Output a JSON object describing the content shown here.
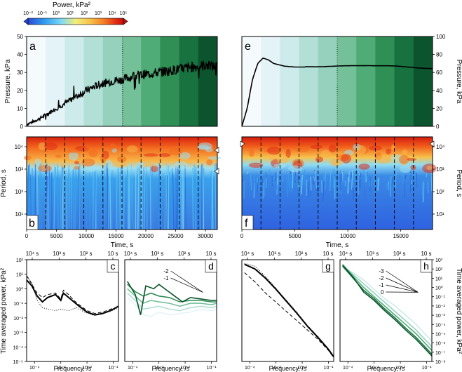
{
  "colorbar": {
    "title": "Power, kPa²",
    "ticks": [
      "10⁻²",
      "10⁻¹",
      "10⁰",
      "10¹",
      "10²",
      "10³",
      "10⁴",
      "10⁵"
    ],
    "colors": [
      "#2a48d6",
      "#2fa0f0",
      "#7fd8f5",
      "#f4ee7a",
      "#f8c24a",
      "#f37b22",
      "#e22d14",
      "#c70f0a"
    ]
  },
  "chart_data": [
    {
      "panel": "a",
      "type": "line",
      "ylabel": "Pressure, kPa",
      "ylim": [
        0,
        50
      ],
      "yticks": [
        "0",
        "10",
        "20",
        "30",
        "40",
        "50"
      ],
      "xlim": [
        0,
        32000
      ],
      "band_colors": [
        "#f5fafd",
        "#e4f3f8",
        "#cdebea",
        "#b2dfd6",
        "#95d1bd",
        "#74c099",
        "#4fac76",
        "#2f8f55",
        "#177240",
        "#0b542d"
      ],
      "series": [
        {
          "name": "Pressure",
          "x": [
            0,
            2000,
            4000,
            6000,
            8000,
            10000,
            12000,
            14000,
            16000,
            18000,
            20000,
            22000,
            24000,
            26000,
            28000,
            30000,
            32000
          ],
          "y": [
            1,
            4,
            8,
            12,
            16,
            20,
            23,
            25,
            26,
            28,
            29,
            30,
            31,
            32,
            33,
            34,
            33
          ]
        }
      ]
    },
    {
      "panel": "e",
      "type": "line",
      "ylabel": "Pressure, kPa",
      "ylim": [
        0,
        100
      ],
      "yticks": [
        "0",
        "20",
        "40",
        "60",
        "80",
        "100"
      ],
      "xlim": [
        0,
        18000
      ],
      "band_colors": [
        "#f5fafd",
        "#e4f3f8",
        "#cdebea",
        "#b2dfd6",
        "#95d1bd",
        "#74c099",
        "#4fac76",
        "#2f8f55",
        "#177240",
        "#0b542d"
      ],
      "series": [
        {
          "name": "Pressure",
          "x": [
            0,
            500,
            1000,
            1500,
            2000,
            2500,
            3000,
            4000,
            5000,
            6000,
            8000,
            10000,
            12000,
            14000,
            16000,
            18000
          ],
          "y": [
            0,
            20,
            52,
            70,
            76,
            74,
            70,
            67,
            66,
            66,
            67,
            67,
            68,
            67,
            66,
            64
          ]
        }
      ]
    },
    {
      "panel": "b",
      "type": "heatmap",
      "ylabel": "Period, s",
      "yticks": [
        "10¹",
        "10²",
        "10³",
        "10⁴"
      ],
      "xlabel": "Time, s",
      "xticks": [
        "0",
        "5000",
        "10000",
        "15000",
        "20000",
        "25000",
        "30000"
      ],
      "xlim": [
        0,
        32000
      ]
    },
    {
      "panel": "f",
      "type": "heatmap",
      "ylabel": "Period, s",
      "yticks": [
        "10¹",
        "10²",
        "10³",
        "10⁴"
      ],
      "xlabel": "Time, s",
      "xticks": [
        "0",
        "5000",
        "10000",
        "15000"
      ],
      "xlim": [
        0,
        18000
      ]
    },
    {
      "panel": "c",
      "type": "line",
      "ylabel": "Time averaged power, kPa²",
      "yticks": [
        "10⁻⁵",
        "10⁻⁴",
        "10⁻³",
        "10⁻²",
        "10⁻¹",
        "10⁰",
        "10¹",
        "10²"
      ],
      "ylim_log": [
        -5,
        2
      ],
      "xlim_log": [
        -4.3,
        -0.8
      ],
      "series": [
        {
          "name": "solid",
          "x": [
            -4.3,
            -4.1,
            -3.9,
            -3.7,
            -3.5,
            -3.2,
            -3.0,
            -2.9,
            -2.7,
            -2.5,
            -2.3,
            -2.0,
            -1.7,
            -1.4,
            -1.1,
            -0.9,
            -0.8
          ],
          "y": [
            0.6,
            0.2,
            -0.5,
            -0.9,
            -0.6,
            -0.4,
            -0.8,
            -0.3,
            -0.6,
            -0.9,
            -1.2,
            -1.6,
            -1.8,
            -1.7,
            -1.5,
            -1.3,
            -1.2
          ]
        },
        {
          "name": "dashed",
          "x": [
            -4.3,
            -4.1,
            -3.9,
            -3.7,
            -3.5,
            -3.2,
            -3.0,
            -2.9,
            -2.7,
            -2.5,
            -2.3,
            -2.0,
            -1.7,
            -1.4,
            -1.1,
            -0.9,
            -0.8
          ],
          "y": [
            0.9,
            0.3,
            -0.3,
            -0.6,
            -0.4,
            -0.3,
            -0.7,
            -0.1,
            -0.4,
            -0.8,
            -1.1,
            -1.5,
            -1.7,
            -1.6,
            -1.4,
            -1.3,
            -1.2
          ]
        },
        {
          "name": "dotted",
          "x": [
            -4.3,
            -4.1,
            -3.9,
            -3.7,
            -3.5,
            -3.2,
            -3.0,
            -2.7,
            -2.4,
            -2.1,
            -1.8,
            -1.5,
            -1.2,
            -0.9,
            -0.8
          ],
          "y": [
            0.9,
            0.4,
            -0.8,
            -1.3,
            -1.4,
            -1.5,
            -1.4,
            -1.5,
            -1.3,
            -1.6,
            -1.8,
            -1.7,
            -1.6,
            -1.4,
            -1.3
          ]
        }
      ]
    },
    {
      "panel": "d",
      "type": "line",
      "xlim_log": [
        -4.3,
        -0.8
      ],
      "ylim_log": [
        -5,
        2
      ],
      "slope_labels": [
        "-2",
        "-1"
      ],
      "series": [
        {
          "name": "w1",
          "color": "#e4f3f8",
          "x": [
            -4.2,
            -3.9,
            -3.6,
            -3.3,
            -3.0,
            -2.6,
            -2.2,
            -1.8,
            -1.4,
            -1.0,
            -0.8
          ],
          "y": [
            -0.6,
            -1.1,
            -1.8,
            -1.9,
            -1.6,
            -1.8,
            -1.7,
            -1.6,
            -1.4,
            -1.5,
            -1.4
          ]
        },
        {
          "name": "w2",
          "color": "#b2dfd6",
          "x": [
            -4.2,
            -3.9,
            -3.6,
            -3.3,
            -3.0,
            -2.6,
            -2.2,
            -1.8,
            -1.4,
            -1.0,
            -0.8
          ],
          "y": [
            -0.3,
            -0.8,
            -1.4,
            -1.3,
            -1.2,
            -1.4,
            -1.5,
            -1.3,
            -1.2,
            -1.3,
            -1.2
          ]
        },
        {
          "name": "w3",
          "color": "#74c099",
          "x": [
            -4.2,
            -3.9,
            -3.6,
            -3.3,
            -3.0,
            -2.6,
            -2.2,
            -1.8,
            -1.4,
            -1.0,
            -0.8
          ],
          "y": [
            0.0,
            -0.5,
            -1.0,
            -0.8,
            -0.9,
            -1.0,
            -1.2,
            -1.0,
            -1.0,
            -1.1,
            -1.0
          ]
        },
        {
          "name": "w4",
          "color": "#2f8f55",
          "x": [
            -4.2,
            -3.9,
            -3.6,
            -3.3,
            -3.0,
            -2.6,
            -2.2,
            -1.8,
            -1.4,
            -1.0,
            -0.8
          ],
          "y": [
            0.3,
            -0.2,
            -0.5,
            -0.3,
            -0.5,
            -0.6,
            -0.9,
            -0.8,
            -0.8,
            -0.9,
            -0.9
          ]
        },
        {
          "name": "w5",
          "color": "#0b542d",
          "x": [
            -4.2,
            -3.9,
            -3.7,
            -3.5,
            -3.2,
            -3.0,
            -2.7,
            -2.4,
            -2.1,
            -1.8,
            -1.4,
            -1.0,
            -0.8
          ],
          "y": [
            0.5,
            -0.4,
            -1.8,
            0.2,
            0.0,
            0.3,
            -0.1,
            -0.5,
            -0.9,
            -0.6,
            -0.7,
            -0.8,
            -0.8
          ]
        }
      ]
    },
    {
      "panel": "g",
      "type": "line",
      "xlim_log": [
        -4.3,
        -0.8
      ],
      "ylim_log": [
        -8,
        3
      ],
      "series": [
        {
          "name": "solid",
          "x": [
            -4.2,
            -3.8,
            -3.4,
            -3.0,
            -2.6,
            -2.2,
            -1.8,
            -1.4,
            -1.0,
            -0.8
          ],
          "y": [
            2.5,
            2.0,
            1.0,
            -0.2,
            -1.5,
            -2.8,
            -4.2,
            -5.4,
            -6.7,
            -7.5
          ]
        },
        {
          "name": "dashed",
          "x": [
            -4.2,
            -3.8,
            -3.4,
            -3.0,
            -2.6,
            -2.2,
            -1.8,
            -1.4,
            -1.0,
            -0.8
          ],
          "y": [
            1.6,
            0.6,
            -0.6,
            -1.6,
            -2.6,
            -3.6,
            -4.6,
            -5.6,
            -6.8,
            -7.6
          ]
        },
        {
          "name": "dotted",
          "x": [
            -4.2,
            -3.8,
            -3.4,
            -3.0,
            -2.6,
            -2.2,
            -1.8,
            -1.4,
            -1.0,
            -0.8
          ],
          "y": [
            2.6,
            2.3,
            1.2,
            -0.1,
            -1.4,
            -2.7,
            -4.1,
            -5.3,
            -6.6,
            -7.4
          ]
        }
      ]
    },
    {
      "panel": "h",
      "type": "line",
      "ylabel": "Time averaged power, kPa²",
      "yticks": [
        "10⁻⁸",
        "10⁻⁷",
        "10⁻⁶",
        "10⁻⁵",
        "10⁻⁴",
        "10⁻³",
        "10⁻²",
        "10⁻¹",
        "10⁰",
        "10¹",
        "10²",
        "10³"
      ],
      "xlim_log": [
        -4.3,
        -0.8
      ],
      "ylim_log": [
        -8,
        3
      ],
      "slope_labels": [
        "-3",
        "-2",
        "-1",
        "0"
      ],
      "series": [
        {
          "name": "w1",
          "color": "#cdebea",
          "x": [
            -4.2,
            -3.8,
            -3.4,
            -3.0,
            -2.6,
            -2.2,
            -1.8,
            -1.4,
            -1.0,
            -0.8
          ],
          "y": [
            2.2,
            1.6,
            0.8,
            -0.2,
            -1.2,
            -2.0,
            -3.0,
            -4.0,
            -5.2,
            -5.8
          ]
        },
        {
          "name": "w2",
          "color": "#95d1bd",
          "x": [
            -4.2,
            -3.8,
            -3.4,
            -3.0,
            -2.6,
            -2.2,
            -1.8,
            -1.4,
            -1.0,
            -0.8
          ],
          "y": [
            2.4,
            1.4,
            0.4,
            -0.6,
            -1.6,
            -2.6,
            -3.6,
            -4.6,
            -5.8,
            -6.4
          ]
        },
        {
          "name": "w3",
          "color": "#4fac76",
          "x": [
            -4.2,
            -3.8,
            -3.4,
            -3.0,
            -2.6,
            -2.2,
            -1.8,
            -1.4,
            -1.0,
            -0.8
          ],
          "y": [
            2.5,
            1.2,
            0.0,
            -1.0,
            -2.0,
            -3.0,
            -4.0,
            -5.0,
            -6.2,
            -6.8
          ]
        },
        {
          "name": "w4",
          "color": "#177240",
          "x": [
            -4.2,
            -3.8,
            -3.4,
            -3.0,
            -2.6,
            -2.2,
            -1.8,
            -1.4,
            -1.0,
            -0.8
          ],
          "y": [
            2.3,
            1.0,
            -0.3,
            -1.2,
            -2.3,
            -3.3,
            -4.4,
            -5.4,
            -6.6,
            -7.2
          ]
        },
        {
          "name": "w5",
          "color": "#0b542d",
          "x": [
            -4.2,
            -3.8,
            -3.4,
            -3.0,
            -2.6,
            -2.2,
            -1.8,
            -1.4,
            -1.0,
            -0.8
          ],
          "y": [
            2.4,
            1.1,
            -0.5,
            -1.4,
            -2.5,
            -3.5,
            -4.6,
            -5.6,
            -6.8,
            -7.4
          ]
        }
      ]
    }
  ],
  "panel_letters": [
    "a",
    "e",
    "b",
    "f",
    "c",
    "d",
    "g",
    "h"
  ],
  "period_top_ticks": [
    "10⁴ s",
    "10³ s",
    "10² s",
    "10 s"
  ],
  "freq_xlabel": "Frequency, /s",
  "freq_ticks": [
    "10⁻⁴",
    "10⁻³",
    "10⁻²",
    "10⁻¹"
  ],
  "small_left_ticks": [
    "10²",
    "10¹",
    "10⁰",
    "10⁻¹",
    "10⁻²",
    "10⁻³",
    "10⁻⁴",
    "10⁻⁵"
  ]
}
